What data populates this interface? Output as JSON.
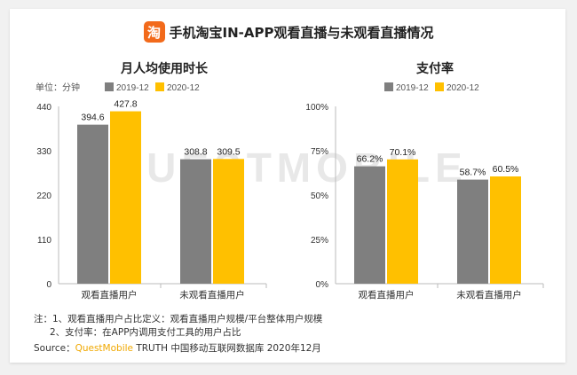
{
  "header": {
    "logo_char": "淘",
    "title": "手机淘宝IN-APP观看直播与未观看直播情况"
  },
  "colors": {
    "series1": "#7f7f7f",
    "series2": "#ffc000"
  },
  "watermark": "QUESTMOBILE",
  "chart_data": [
    {
      "type": "bar",
      "title": "月人均使用时长",
      "unit_label": "单位：分钟",
      "categories": [
        "观看直播用户",
        "未观看直播用户"
      ],
      "series": [
        {
          "name": "2019-12",
          "values": [
            394.6,
            308.8
          ],
          "labels": [
            "394.6",
            "308.8"
          ]
        },
        {
          "name": "2020-12",
          "values": [
            427.8,
            309.5
          ],
          "labels": [
            "427.8",
            "309.5"
          ]
        }
      ],
      "ylim": [
        0,
        440
      ],
      "yticks": [
        0,
        110,
        220,
        330,
        440
      ],
      "ytick_labels": [
        "0",
        "110",
        "220",
        "330",
        "440"
      ],
      "grid": false,
      "legend": "top"
    },
    {
      "type": "bar",
      "title": "支付率",
      "categories": [
        "观看直播用户",
        "未观看直播用户"
      ],
      "series": [
        {
          "name": "2019-12",
          "values": [
            66.2,
            58.7
          ],
          "labels": [
            "66.2%",
            "58.7%"
          ]
        },
        {
          "name": "2020-12",
          "values": [
            70.1,
            60.5
          ],
          "labels": [
            "70.1%",
            "60.5%"
          ]
        }
      ],
      "ylim": [
        0,
        100
      ],
      "yticks": [
        0,
        25,
        50,
        75,
        100
      ],
      "ytick_labels": [
        "0%",
        "25%",
        "50%",
        "75%",
        "100%"
      ],
      "grid": false,
      "legend": "top"
    }
  ],
  "notes": {
    "line1": "注：1、观看直播用户占比定义：观看直播用户规模/平台整体用户规模",
    "line2": "2、支付率：在APP内调用支付工具的用户占比"
  },
  "source": {
    "prefix": "Source：",
    "brand": "QuestMobile",
    "suffix": " TRUTH 中国移动互联网数据库 2020年12月"
  }
}
